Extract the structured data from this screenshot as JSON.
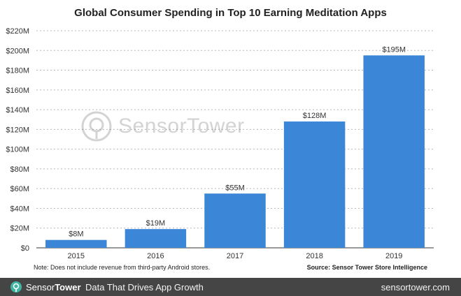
{
  "chart_data": {
    "type": "bar",
    "title": "Global Consumer Spending in Top 10 Earning Meditation Apps",
    "categories": [
      "2015",
      "2016",
      "2017",
      "2018",
      "2019"
    ],
    "values": [
      8,
      19,
      55,
      128,
      195
    ],
    "data_labels": [
      "$8M",
      "$19M",
      "$55M",
      "$128M",
      "$195M"
    ],
    "y_ticks": [
      0,
      20,
      40,
      60,
      80,
      100,
      120,
      140,
      160,
      180,
      200,
      220
    ],
    "y_tick_labels": [
      "$0",
      "$20M",
      "$40M",
      "$60M",
      "$80M",
      "$100M",
      "$120M",
      "$140M",
      "$160M",
      "$180M",
      "$200M",
      "$220M"
    ],
    "ylim": [
      0,
      220
    ],
    "grid": "horizontal dotted",
    "bar_color": "#3b86d6"
  },
  "note": "Note: Does not include revenue from third-party Android stores.",
  "source": "Source: Sensor Tower Store Intelligence",
  "watermark": {
    "brand_1": "Sensor",
    "brand_2": "Tower",
    "icon": "sensor-tower-logo-icon"
  },
  "footer": {
    "brand_1": "Sensor",
    "brand_2": "Tower",
    "tagline": "Data That Drives App Growth",
    "site": "sensortower.com",
    "background": "#454545",
    "icon_color": "#3fb6a4"
  }
}
